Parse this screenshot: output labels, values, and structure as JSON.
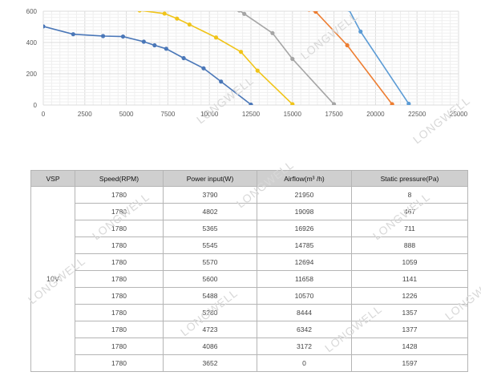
{
  "chart_data": {
    "type": "line",
    "xlim": [
      0,
      25000
    ],
    "ylim": [
      0,
      600
    ],
    "x_ticks": [
      "0",
      "2500",
      "5000",
      "7500",
      "10000",
      "12500",
      "15000",
      "17500",
      "20000",
      "22500",
      "25000"
    ],
    "y_ticks": [
      "0",
      "200",
      "400",
      "600"
    ],
    "grid": true,
    "series": [
      {
        "color": "#4a77b8",
        "points": [
          [
            0,
            503
          ],
          [
            1800,
            453
          ],
          [
            3600,
            441
          ],
          [
            4800,
            438
          ],
          [
            6050,
            405
          ],
          [
            6700,
            382
          ],
          [
            7400,
            360
          ],
          [
            8450,
            300
          ],
          [
            9650,
            235
          ],
          [
            10700,
            150
          ],
          [
            12500,
            3
          ]
        ]
      },
      {
        "color": "#f0c419",
        "points": [
          [
            5800,
            605
          ],
          [
            7300,
            585
          ],
          [
            8050,
            553
          ],
          [
            8800,
            515
          ],
          [
            10400,
            432
          ],
          [
            11900,
            340
          ],
          [
            12900,
            220
          ],
          [
            15000,
            5
          ]
        ]
      },
      {
        "color": "#a5a5a5",
        "points": [
          [
            11800,
            605
          ],
          [
            12100,
            583
          ],
          [
            13800,
            460
          ],
          [
            15000,
            295
          ],
          [
            17500,
            5
          ]
        ]
      },
      {
        "color": "#ed7d31",
        "points": [
          [
            16000,
            610
          ],
          [
            16400,
            597
          ],
          [
            18300,
            382
          ],
          [
            21000,
            5
          ]
        ]
      },
      {
        "color": "#5b9bd5",
        "points": [
          [
            18400,
            610
          ],
          [
            19100,
            470
          ],
          [
            22000,
            8
          ]
        ]
      }
    ]
  },
  "table": {
    "headers": [
      "VSP",
      "Speed(RPM)",
      "Power input(W)",
      "Airflow(m³ /h)",
      "Static pressure(Pa)"
    ],
    "vsp": "10V",
    "rows": [
      [
        "1780",
        "3790",
        "21950",
        "8"
      ],
      [
        "1780",
        "4802",
        "19098",
        "467"
      ],
      [
        "1780",
        "5365",
        "16926",
        "711"
      ],
      [
        "1780",
        "5545",
        "14785",
        "888"
      ],
      [
        "1780",
        "5570",
        "12694",
        "1059"
      ],
      [
        "1780",
        "5600",
        "11658",
        "1141"
      ],
      [
        "1780",
        "5488",
        "10570",
        "1226"
      ],
      [
        "1780",
        "5280",
        "8444",
        "1357"
      ],
      [
        "1780",
        "4723",
        "6342",
        "1377"
      ],
      [
        "1780",
        "4086",
        "3172",
        "1428"
      ],
      [
        "1780",
        "3652",
        "0",
        "1597"
      ]
    ]
  },
  "watermark": "LONGWELL"
}
